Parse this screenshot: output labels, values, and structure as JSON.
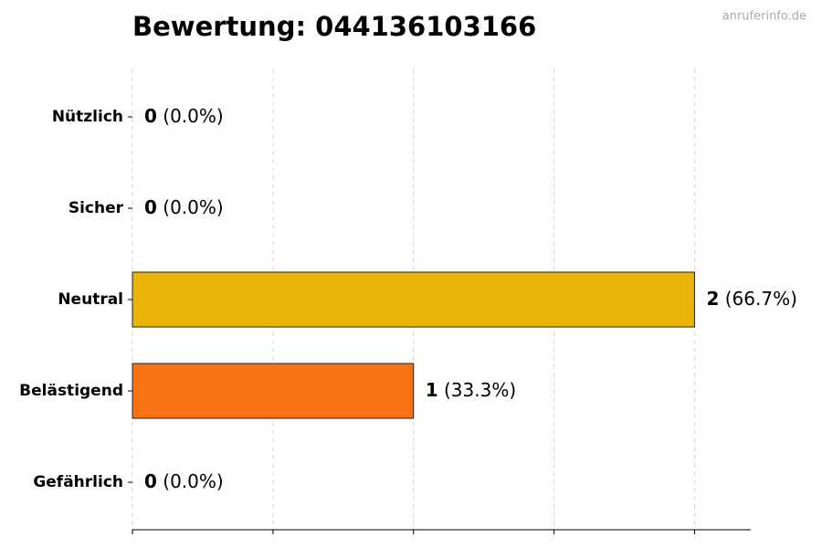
{
  "chart_data": {
    "type": "barh",
    "title": "Bewertung: 044136103166",
    "watermark": "anruferinfo.de",
    "categories": [
      "Nützlich",
      "Sicher",
      "Neutral",
      "Belästigend",
      "Gefährlich"
    ],
    "values": [
      0,
      0,
      2,
      1,
      0
    ],
    "percent_labels": [
      "(0.0%)",
      "(0.0%)",
      "(66.7%)",
      "(33.3%)",
      "(0.0%)"
    ],
    "colors": [
      "#22c55e",
      "#3b82f6",
      "#eab308",
      "#f97316",
      "#dc2626"
    ],
    "xlim": [
      0,
      2.2
    ],
    "xticks": [
      0,
      0.5,
      1,
      1.5,
      2
    ],
    "grid": true
  }
}
